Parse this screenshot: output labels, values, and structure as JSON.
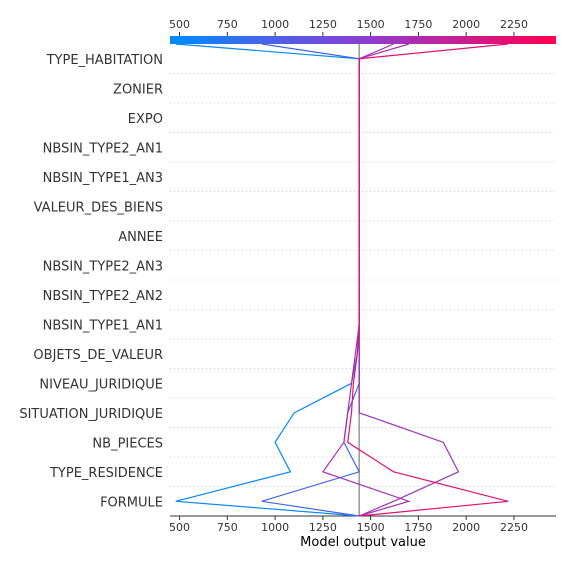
{
  "chart_data": {
    "type": "line",
    "title": "",
    "xlabel": "Model output value",
    "ylabel": "",
    "xlim": [
      450,
      2470
    ],
    "xticks": [
      500,
      750,
      1000,
      1250,
      1500,
      1750,
      2000,
      2250
    ],
    "base_value": 1440,
    "features": [
      "TYPE_HABITATION",
      "ZONIER",
      "EXPO",
      "NBSIN_TYPE2_AN1",
      "NBSIN_TYPE1_AN3",
      "VALEUR_DES_BIENS",
      "ANNEE",
      "NBSIN_TYPE2_AN3",
      "NBSIN_TYPE2_AN2",
      "NBSIN_TYPE1_AN1",
      "OBJETS_DE_VALEUR",
      "NIVEAU_JURIDIQUE",
      "SITUATION_JURIDIQUE",
      "NB_PIECES",
      "TYPE_RESIDENCE",
      "FORMULE"
    ],
    "colorbar": {
      "min": 450,
      "max": 2470,
      "low_color": "#008bfb",
      "high_color": "#ff0052"
    },
    "grid": "dotted-horizontal",
    "series": [
      {
        "final_value": 480,
        "values": [
          1440,
          1440,
          1440,
          1440,
          1440,
          1440,
          1440,
          1440,
          1440,
          1440,
          1430,
          1400,
          1100,
          1000,
          1080,
          480
        ]
      },
      {
        "final_value": 930,
        "values": [
          1440,
          1440,
          1440,
          1440,
          1440,
          1440,
          1440,
          1440,
          1440,
          1440,
          1440,
          1440,
          1380,
          1360,
          1440,
          930
        ]
      },
      {
        "final_value": 1620,
        "values": [
          1440,
          1440,
          1440,
          1440,
          1440,
          1440,
          1440,
          1440,
          1440,
          1440,
          1440,
          1440,
          1440,
          1880,
          1960,
          1620
        ]
      },
      {
        "final_value": 1700,
        "values": [
          1440,
          1440,
          1440,
          1440,
          1440,
          1440,
          1440,
          1440,
          1440,
          1440,
          1420,
          1400,
          1380,
          1360,
          1250,
          1700
        ]
      },
      {
        "final_value": 2220,
        "values": [
          1440,
          1440,
          1440,
          1440,
          1440,
          1440,
          1440,
          1440,
          1440,
          1440,
          1430,
          1410,
          1400,
          1380,
          1620,
          2220
        ]
      }
    ]
  }
}
